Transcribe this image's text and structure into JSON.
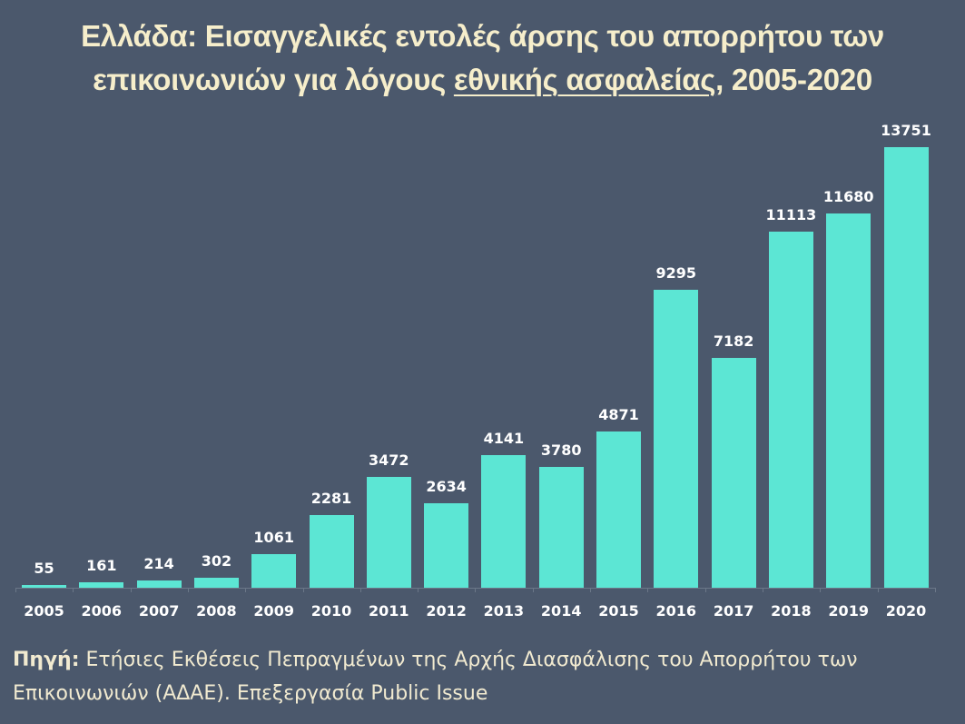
{
  "title": {
    "line1": "Ελλάδα: Εισαγγελικές εντολές άρσης του απορρήτου των",
    "line2_prefix": "επικοινωνιών για λόγους ",
    "line2_underlined": "εθνικής ασφαλείας",
    "line2_suffix": ", 2005-2020"
  },
  "source": {
    "label": "Πηγή:",
    "text": " Ετήσιες Εκθέσεις Πεπραγμένων της Αρχής Διασφάλισης του Απορρήτου των Επικοινωνιών (ΑΔΑΕ). Επεξεργασία Public Issue"
  },
  "colors": {
    "background": "#4b586c",
    "bar": "#5ce6d4",
    "title": "#f6eecb",
    "labels": "#ffffff"
  },
  "chart_data": {
    "type": "bar",
    "title": "Ελλάδα: Εισαγγελικές εντολές άρσης του απορρήτου των επικοινωνιών για λόγους εθνικής ασφαλείας, 2005-2020",
    "categories": [
      "2005",
      "2006",
      "2007",
      "2008",
      "2009",
      "2010",
      "2011",
      "2012",
      "2013",
      "2014",
      "2015",
      "2016",
      "2017",
      "2018",
      "2019",
      "2020"
    ],
    "values": [
      55,
      161,
      214,
      302,
      1061,
      2281,
      3472,
      2634,
      4141,
      3780,
      4871,
      9295,
      7182,
      11113,
      11680,
      13751
    ],
    "xlabel": "",
    "ylabel": "",
    "ylim": [
      0,
      14000
    ],
    "grid": false,
    "legend": "none",
    "data_labels": true
  }
}
